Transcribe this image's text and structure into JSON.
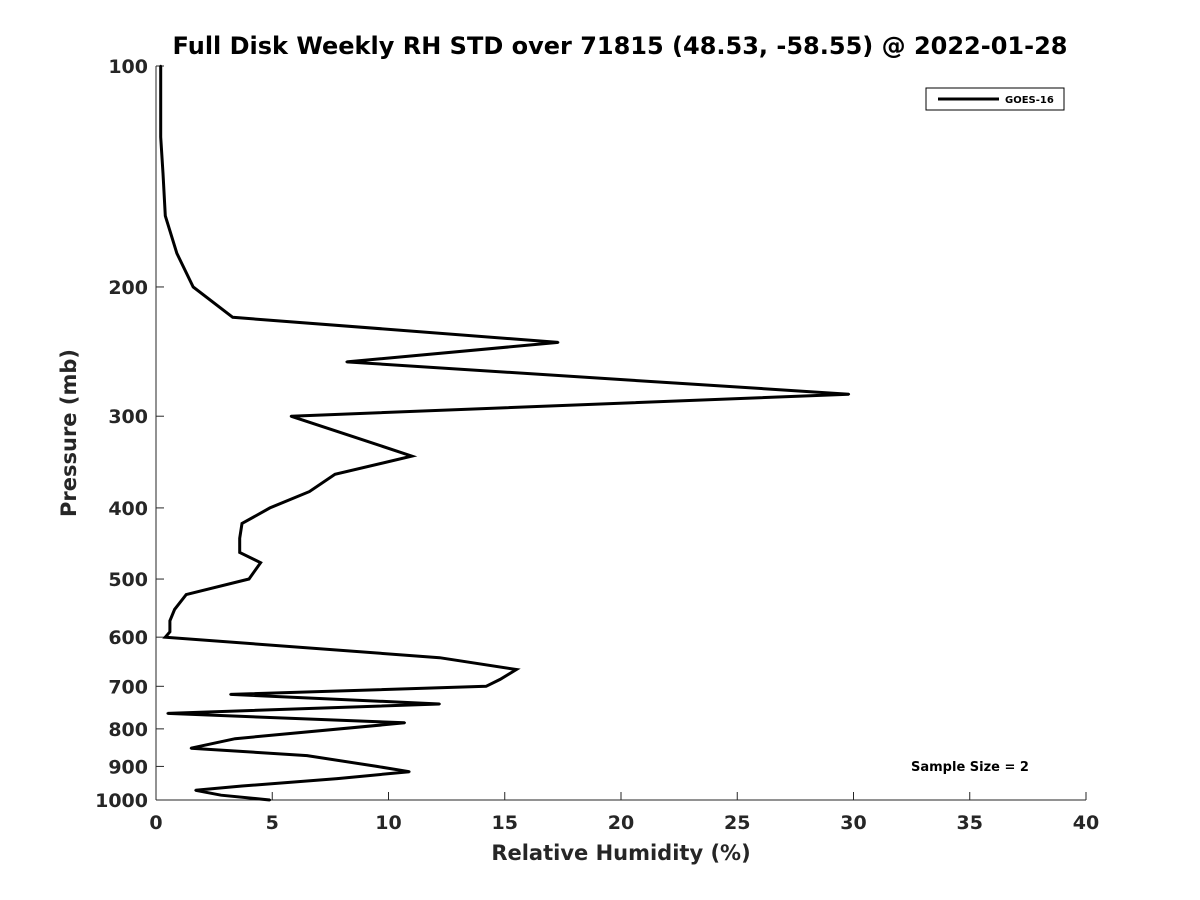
{
  "chart_data": {
    "type": "line",
    "title": "Full Disk Weekly RH STD over 71815 (48.53, -58.55) @ 2022-01-28",
    "xlabel": "Relative Humidity (%)",
    "ylabel": "Pressure (mb)",
    "xlim": [
      0,
      40
    ],
    "ylim": [
      100,
      1000
    ],
    "y_scale": "log",
    "y_reversed": true,
    "xticks": [
      0,
      5,
      10,
      15,
      20,
      25,
      30,
      35,
      40
    ],
    "xtick_labels": [
      "0",
      "5",
      "10",
      "15",
      "20",
      "25",
      "30",
      "35",
      "40"
    ],
    "yticks": [
      100,
      200,
      300,
      400,
      500,
      600,
      700,
      800,
      900,
      1000
    ],
    "ytick_labels": [
      "100",
      "200",
      "300",
      "400",
      "500",
      "600",
      "700",
      "800",
      "900",
      "1000"
    ],
    "legend": {
      "position": "top-right",
      "entries": [
        "GOES-16"
      ]
    },
    "annotation": "Sample Size = 2",
    "series": [
      {
        "name": "GOES-16",
        "color": "#000000",
        "points": [
          [
            0.2,
            100
          ],
          [
            0.2,
            115
          ],
          [
            0.2,
            125
          ],
          [
            0.3,
            140
          ],
          [
            0.4,
            160
          ],
          [
            0.9,
            180
          ],
          [
            1.6,
            200
          ],
          [
            3.3,
            220
          ],
          [
            17.3,
            238
          ],
          [
            8.2,
            253
          ],
          [
            29.8,
            280
          ],
          [
            5.8,
            300
          ],
          [
            8.5,
            320
          ],
          [
            11.0,
            340
          ],
          [
            7.7,
            360
          ],
          [
            6.6,
            380
          ],
          [
            4.9,
            400
          ],
          [
            3.7,
            420
          ],
          [
            3.6,
            440
          ],
          [
            3.6,
            460
          ],
          [
            4.5,
            475
          ],
          [
            4.0,
            500
          ],
          [
            1.3,
            525
          ],
          [
            0.8,
            550
          ],
          [
            0.6,
            570
          ],
          [
            0.6,
            590
          ],
          [
            0.4,
            600
          ],
          [
            12.2,
            640
          ],
          [
            15.5,
            664
          ],
          [
            14.8,
            685
          ],
          [
            14.2,
            700
          ],
          [
            3.2,
            718
          ],
          [
            12.2,
            740
          ],
          [
            0.5,
            762
          ],
          [
            10.7,
            785
          ],
          [
            3.4,
            825
          ],
          [
            1.5,
            850
          ],
          [
            6.5,
            870
          ],
          [
            9.5,
            900
          ],
          [
            10.9,
            915
          ],
          [
            7.8,
            935
          ],
          [
            3.7,
            957
          ],
          [
            1.7,
            970
          ],
          [
            2.8,
            985
          ],
          [
            4.9,
            1000
          ]
        ]
      }
    ]
  }
}
